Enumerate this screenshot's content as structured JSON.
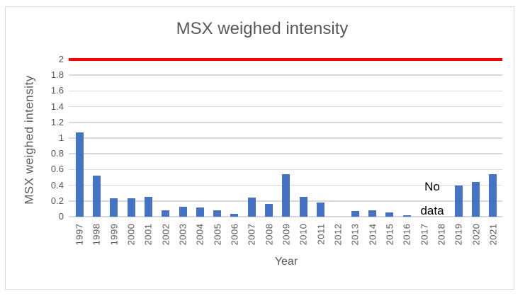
{
  "chart_data": {
    "type": "bar",
    "title": "MSX weighed intensity",
    "xlabel": "Year",
    "ylabel": "MSX weighed intensity",
    "categories": [
      "1997",
      "1998",
      "1999",
      "2000",
      "2001",
      "2002",
      "2003",
      "2004",
      "2005",
      "2006",
      "2007",
      "2008",
      "2009",
      "2010",
      "2011",
      "2012",
      "2013",
      "2014",
      "2015",
      "2016",
      "2017",
      "2018",
      "2019",
      "2020",
      "2021"
    ],
    "values": [
      1.07,
      0.52,
      0.23,
      0.23,
      0.25,
      0.08,
      0.13,
      0.12,
      0.08,
      0.04,
      0.24,
      0.16,
      0.54,
      0.25,
      0.18,
      0,
      0.07,
      0.08,
      0.05,
      0.02,
      null,
      null,
      0.4,
      0.44,
      0.54
    ],
    "ylim": [
      0,
      2
    ],
    "y_tick_labels": [
      "0",
      "0.2",
      "0.4",
      "0.6",
      "0.8",
      "1",
      "1.2",
      "1.4",
      "1.6",
      "1.8",
      "2"
    ],
    "grid": true,
    "legend": false,
    "reference_line": {
      "y": 2,
      "label": "",
      "color": "#ff0000"
    },
    "annotation": {
      "text": "No data",
      "lines": [
        "No",
        "data"
      ],
      "between_categories": [
        "2017",
        "2018"
      ]
    },
    "bar_color": "#4472c4",
    "gridline_color": "#d9d9d9",
    "text_color": "#595959",
    "annotation_color": "#000000"
  }
}
